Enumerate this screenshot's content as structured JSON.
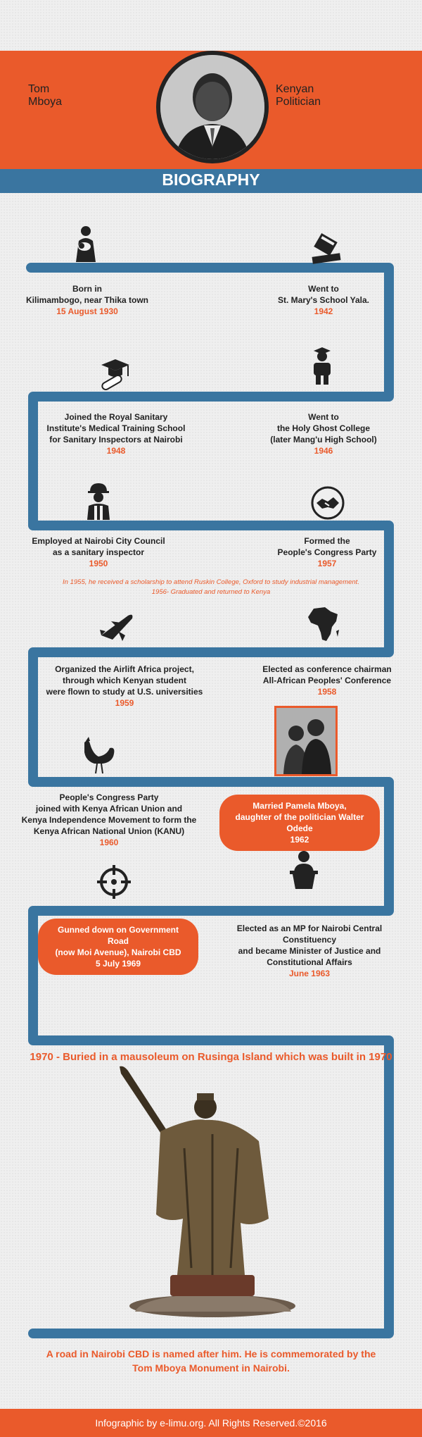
{
  "header": {
    "name": [
      "Tom",
      "Mboya"
    ],
    "role": [
      "Kenyan",
      "Politician"
    ],
    "section": "BIOGRAPHY"
  },
  "events": [
    {
      "text": [
        "Born in",
        "Kilimambogo, near Thika town"
      ],
      "date": "15 August 1930",
      "icon": "mother-baby-icon"
    },
    {
      "text": [
        "Went to",
        "St. Mary's School Yala."
      ],
      "date": "1942",
      "icon": "books-icon"
    },
    {
      "text": [
        "Joined the Royal Sanitary",
        "Institute's Medical Training School",
        "for Sanitary Inspectors at Nairobi"
      ],
      "date": "1948",
      "icon": "graduation-cap-diploma-icon"
    },
    {
      "text": [
        "Went to",
        "the Holy Ghost College",
        "(later Mang'u High School)"
      ],
      "date": "1946",
      "icon": "graduate-person-icon"
    },
    {
      "text": [
        "Employed at Nairobi City Council",
        "as a sanitary inspector"
      ],
      "date": "1950",
      "icon": "worker-icon"
    },
    {
      "text": [
        "Formed the",
        "People's Congress Party"
      ],
      "date": "1957",
      "icon": "handshake-icon"
    },
    {
      "text": [
        "Organized the Airlift Africa project,",
        "through which Kenyan student",
        "were flown to study at U.S. universities"
      ],
      "date": "1959",
      "icon": "airplane-icon"
    },
    {
      "text": [
        "Elected as conference chairman",
        "All-African Peoples' Conference"
      ],
      "date": "1958",
      "icon": "africa-map-icon"
    },
    {
      "text": [
        "People's Congress Party",
        "joined with Kenya African Union and",
        "Kenya Independence Movement to form the",
        "Kenya African National Union (KANU)"
      ],
      "date": "1960",
      "icon": "rooster-icon"
    },
    {
      "text": [
        "Married Pamela Mboya,",
        "daughter of the politician Walter Odede"
      ],
      "date": "1962",
      "icon": "couple-photo"
    },
    {
      "text": [
        "Gunned down on Government Road",
        "(now Moi Avenue), Nairobi CBD"
      ],
      "date": "5 July 1969",
      "icon": "crosshair-icon"
    },
    {
      "text": [
        "Elected as an MP for Nairobi Central Constituency",
        "and became Minister of Justice and",
        "Constitutional Affairs"
      ],
      "date": "June 1963",
      "icon": "speaker-podium-icon"
    }
  ],
  "note": [
    "In 1955, he received a scholarship to attend Ruskin College, Oxford to study industrial management.",
    "1956- Graduated and returned to Kenya"
  ],
  "burial": "1970 - Buried in a mausoleum on Rusinga Island which was built in 1970",
  "closing": [
    "A road in Nairobi CBD is named after him. He is commemorated by the",
    "Tom Mboya Monument in Nairobi."
  ],
  "footer": "Infographic by e-limu.org. All Rights Reserved.©2016",
  "colors": {
    "accent": "#ea5a2b",
    "path": "#3a75a0",
    "ink": "#222222"
  }
}
